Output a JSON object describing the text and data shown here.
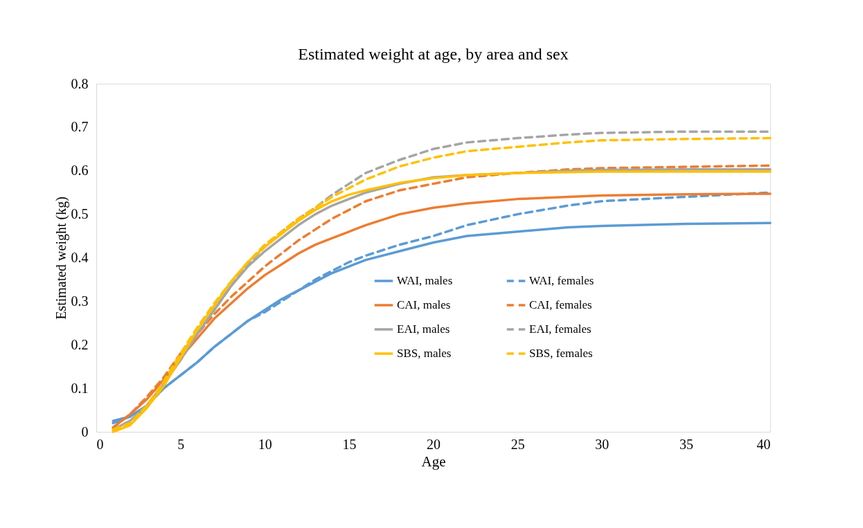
{
  "chart_data": {
    "type": "line",
    "title": "Estimated weight at age, by area and sex",
    "xlabel": "Age",
    "ylabel": "Estimated  weight  (kg)",
    "x": [
      1,
      2,
      3,
      4,
      5,
      6,
      7,
      8,
      9,
      10,
      11,
      12,
      13,
      14,
      15,
      16,
      18,
      20,
      22,
      25,
      28,
      30,
      35,
      40
    ],
    "xlim": [
      0,
      40
    ],
    "xticks": [
      0,
      5,
      10,
      15,
      20,
      25,
      30,
      35,
      40
    ],
    "ylim": [
      0,
      0.8
    ],
    "yticks": [
      0,
      0.1,
      0.2,
      0.3,
      0.4,
      0.5,
      0.6,
      0.7,
      0.8
    ],
    "grid": false,
    "legend": "bottom right",
    "marker": "none",
    "series": [
      {
        "name": "WAI, males",
        "color": "#5b9bd5",
        "line_style": "solid",
        "values": [
          0.025,
          0.035,
          0.06,
          0.1,
          0.13,
          0.16,
          0.195,
          0.225,
          0.255,
          0.28,
          0.305,
          0.325,
          0.345,
          0.365,
          0.38,
          0.395,
          0.415,
          0.435,
          0.45,
          0.46,
          0.47,
          0.473,
          0.478,
          0.48
        ]
      },
      {
        "name": "WAI, females",
        "color": "#5b9bd5",
        "line_style": "dashed",
        "values": [
          0.02,
          0.035,
          0.06,
          0.1,
          0.13,
          0.16,
          0.195,
          0.225,
          0.255,
          0.275,
          0.3,
          0.325,
          0.35,
          0.37,
          0.39,
          0.405,
          0.43,
          0.45,
          0.475,
          0.5,
          0.52,
          0.53,
          0.54,
          0.55
        ]
      },
      {
        "name": "CAI, males",
        "color": "#ed7d31",
        "line_style": "solid",
        "values": [
          0.01,
          0.04,
          0.075,
          0.12,
          0.17,
          0.215,
          0.26,
          0.295,
          0.33,
          0.36,
          0.385,
          0.41,
          0.43,
          0.445,
          0.46,
          0.475,
          0.5,
          0.515,
          0.525,
          0.535,
          0.54,
          0.543,
          0.546,
          0.547
        ]
      },
      {
        "name": "CAI, females",
        "color": "#ed7d31",
        "line_style": "dashed",
        "values": [
          0.01,
          0.04,
          0.08,
          0.125,
          0.18,
          0.225,
          0.27,
          0.31,
          0.345,
          0.38,
          0.41,
          0.44,
          0.465,
          0.49,
          0.51,
          0.53,
          0.555,
          0.57,
          0.585,
          0.595,
          0.603,
          0.606,
          0.609,
          0.612
        ]
      },
      {
        "name": "EAI, males",
        "color": "#a5a5a5",
        "line_style": "solid",
        "values": [
          0.005,
          0.025,
          0.06,
          0.11,
          0.165,
          0.225,
          0.28,
          0.335,
          0.38,
          0.415,
          0.445,
          0.475,
          0.5,
          0.52,
          0.535,
          0.55,
          0.57,
          0.585,
          0.59,
          0.595,
          0.6,
          0.602,
          0.603,
          0.603
        ]
      },
      {
        "name": "EAI, females",
        "color": "#a5a5a5",
        "line_style": "dashed",
        "values": [
          0.005,
          0.025,
          0.06,
          0.11,
          0.165,
          0.225,
          0.28,
          0.335,
          0.385,
          0.425,
          0.46,
          0.49,
          0.515,
          0.545,
          0.57,
          0.595,
          0.625,
          0.65,
          0.665,
          0.675,
          0.683,
          0.687,
          0.69,
          0.69
        ]
      },
      {
        "name": "SBS, males",
        "color": "#ffc000",
        "line_style": "solid",
        "values": [
          0.0,
          0.015,
          0.055,
          0.105,
          0.17,
          0.235,
          0.29,
          0.345,
          0.39,
          0.425,
          0.455,
          0.485,
          0.51,
          0.53,
          0.545,
          0.555,
          0.572,
          0.583,
          0.59,
          0.595,
          0.597,
          0.598,
          0.598,
          0.598
        ]
      },
      {
        "name": "SBS, females",
        "color": "#ffc000",
        "line_style": "dashed",
        "values": [
          0.005,
          0.02,
          0.06,
          0.115,
          0.18,
          0.24,
          0.295,
          0.345,
          0.39,
          0.43,
          0.46,
          0.49,
          0.515,
          0.54,
          0.56,
          0.58,
          0.61,
          0.63,
          0.645,
          0.655,
          0.665,
          0.67,
          0.673,
          0.675
        ]
      }
    ]
  }
}
